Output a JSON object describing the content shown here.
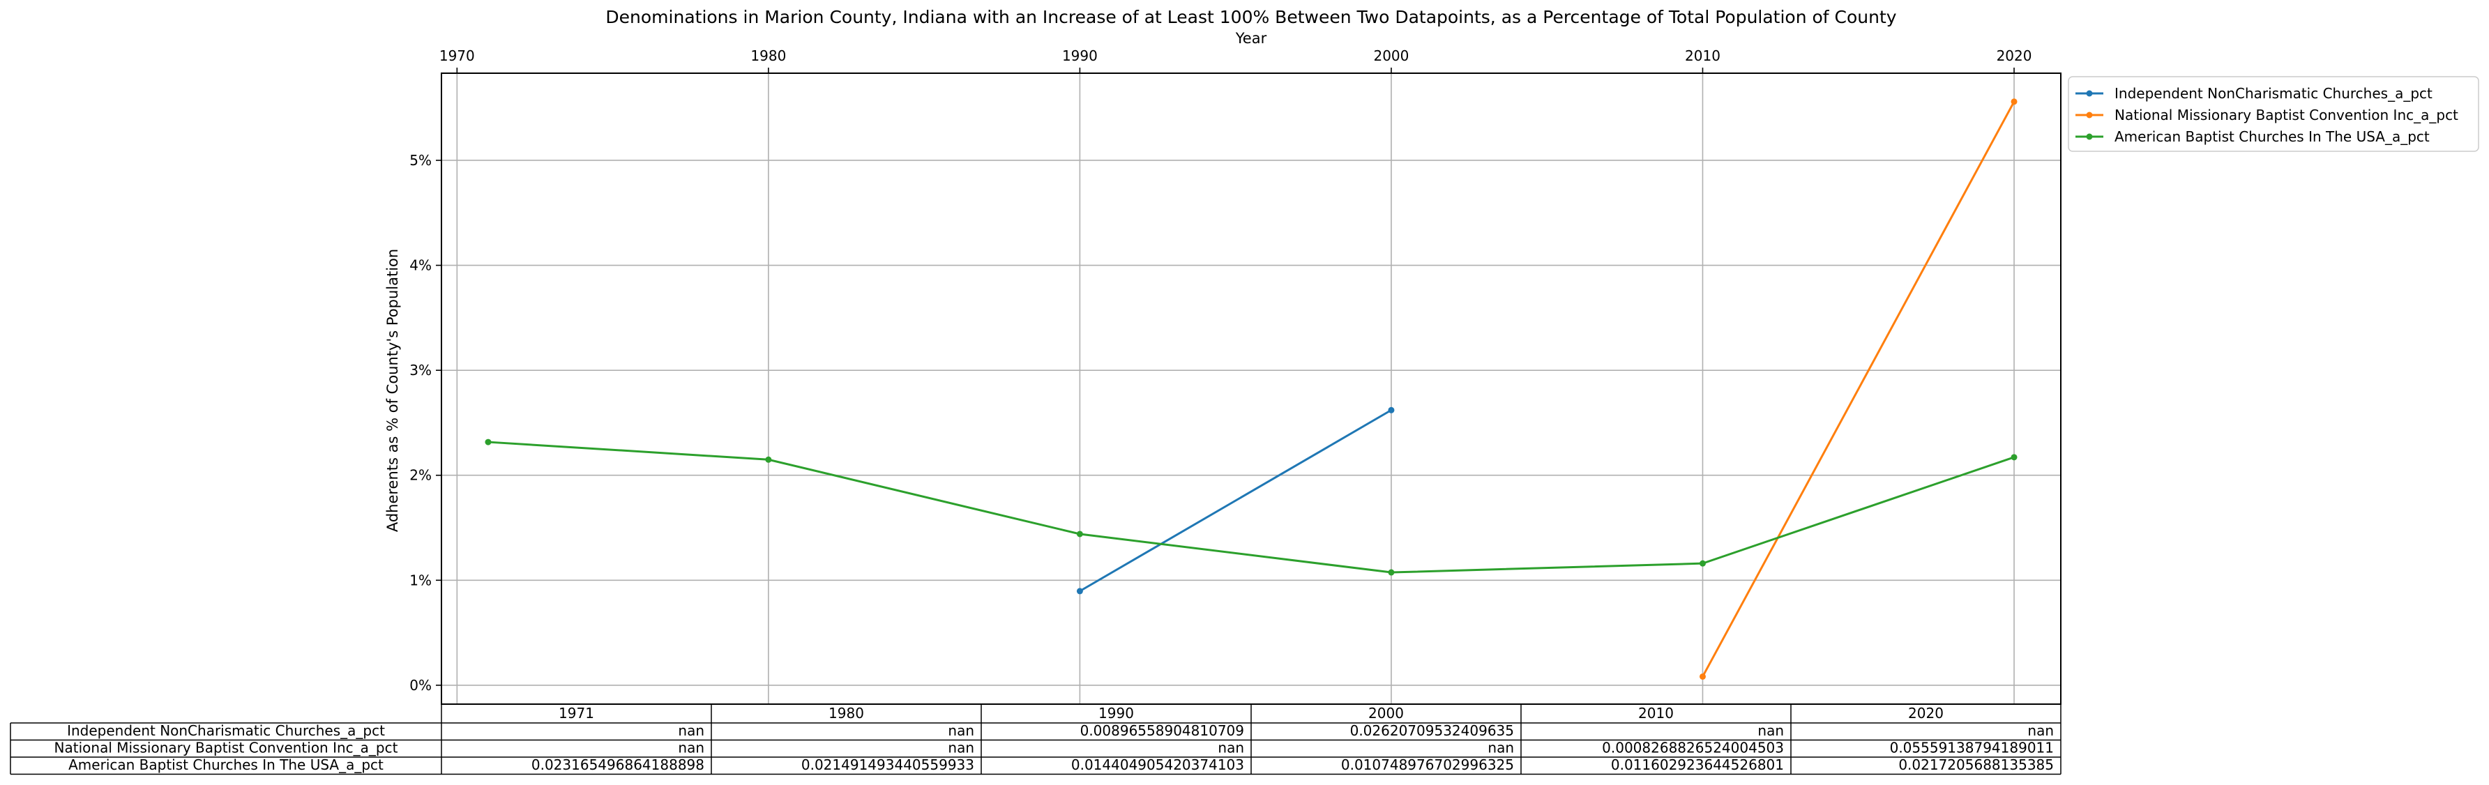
{
  "chart_data": {
    "type": "line",
    "title": "Denominations in Marion County, Indiana with an Increase of at Least 100% Between Two Datapoints, as a Percentage of Total Population of County",
    "xlabel": "Year",
    "ylabel": "Adherents as % of County's Population",
    "x_ticks": [
      "1970",
      "1980",
      "1990",
      "2000",
      "2010",
      "2020"
    ],
    "y_ticks": [
      "0%",
      "1%",
      "2%",
      "3%",
      "4%",
      "5%"
    ],
    "xlim": [
      1969.5,
      2021.5
    ],
    "ylim": [
      -0.0018,
      0.0583
    ],
    "grid": true,
    "legend_position": "outside-top-right",
    "x": [
      1971,
      1980,
      1990,
      2000,
      2010,
      2020
    ],
    "series": [
      {
        "name": "Independent NonCharismatic Churches_a_pct",
        "color": "#1f77b4",
        "values": [
          null,
          null,
          0.00896558904810709,
          0.02620709532409635,
          null,
          null
        ]
      },
      {
        "name": "National Missionary Baptist Convention Inc_a_pct",
        "color": "#ff7f0e",
        "values": [
          null,
          null,
          null,
          null,
          0.0008268826524004503,
          0.05559138794189011
        ]
      },
      {
        "name": "American Baptist Churches In The USA_a_pct",
        "color": "#2ca02c",
        "values": [
          0.023165496864188898,
          0.021491493440559933,
          0.014404905420374103,
          0.010748976702996325,
          0.011602923644526801,
          0.0217205688135385
        ]
      }
    ],
    "table": {
      "columns": [
        "1971",
        "1980",
        "1990",
        "2000",
        "2010",
        "2020"
      ],
      "rows": [
        {
          "label": "Independent NonCharismatic Churches_a_pct",
          "cells": [
            "nan",
            "nan",
            "0.00896558904810709",
            "0.02620709532409635",
            "nan",
            "nan"
          ]
        },
        {
          "label": "National Missionary Baptist Convention Inc_a_pct",
          "cells": [
            "nan",
            "nan",
            "nan",
            "nan",
            "0.0008268826524004503",
            "0.05559138794189011"
          ]
        },
        {
          "label": "American Baptist Churches In The USA_a_pct",
          "cells": [
            "0.023165496864188898",
            "0.021491493440559933",
            "0.014404905420374103",
            "0.010748976702996325",
            "0.011602923644526801",
            "0.0217205688135385"
          ]
        }
      ]
    }
  }
}
